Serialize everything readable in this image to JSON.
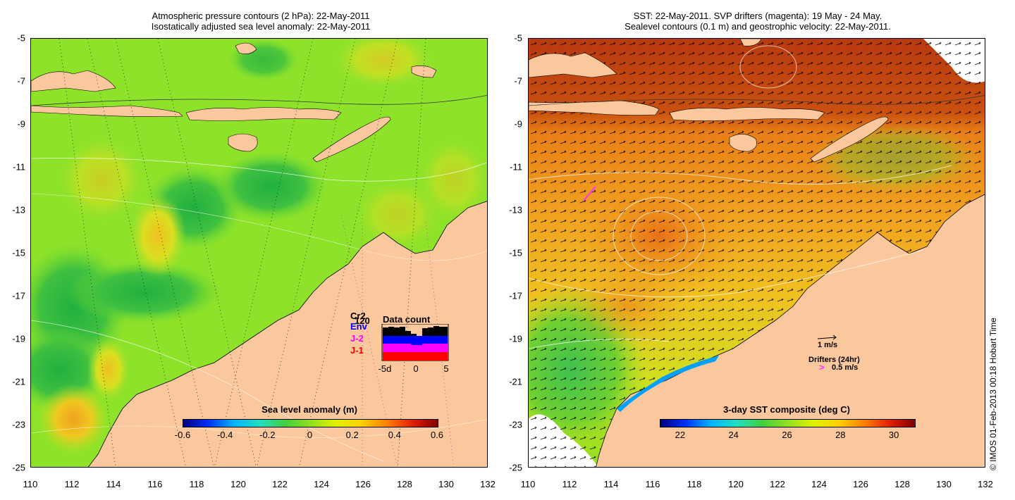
{
  "left_panel": {
    "title_line1": "Atmospheric pressure contours (2 hPa): 22-May-2011",
    "title_line2": "Isostatically adjusted sea level anomaly: 22-May-2011",
    "colorbar_label": "Sea level anomaly (m)",
    "colorbar_ticks": [
      "-0.6",
      "-0.4",
      "-0.2",
      "0",
      "0.2",
      "0.4",
      "0.6"
    ],
    "colorbar_colors": [
      "#00007f",
      "#0032ff",
      "#00b4ff",
      "#20e0c0",
      "#40d040",
      "#90e020",
      "#e0f000",
      "#ffd000",
      "#ff8000",
      "#e02000",
      "#800000"
    ],
    "inset": {
      "title": "Data count",
      "legend": [
        {
          "label": "Cr2",
          "color": "#000000"
        },
        {
          "label": "Env",
          "color": "#0000ff"
        },
        {
          "label": "J-2",
          "color": "#ff00ff"
        },
        {
          "label": "J-1",
          "color": "#ff0000"
        }
      ],
      "overlap_label": "120",
      "x_ticks": [
        "-5d",
        "0",
        "5"
      ]
    }
  },
  "right_panel": {
    "title_line1": "SST: 22-May-2011. SVP drifters (magenta): 19 May - 24 May.",
    "title_line2": "Sealevel contours (0.1 m) and geostrophic velocity: 22-May-2011.",
    "colorbar_label": "3-day SST composite (deg C)",
    "colorbar_ticks": [
      "22",
      "24",
      "26",
      "28",
      "30"
    ],
    "colorbar_colors": [
      "#00007f",
      "#0032ff",
      "#00b4ff",
      "#20e0c0",
      "#40d040",
      "#90e020",
      "#e0f000",
      "#ffd000",
      "#ff8000",
      "#e02000",
      "#800000"
    ],
    "vector_scale_label": "1 m/s",
    "drifters_label": "Drifters (24hr)",
    "drifter_speed_label": "0.5 m/s"
  },
  "axes": {
    "x_ticks": [
      "110",
      "112",
      "114",
      "116",
      "118",
      "120",
      "122",
      "124",
      "126",
      "128",
      "130",
      "132"
    ],
    "y_ticks": [
      "-5",
      "-7",
      "-9",
      "-11",
      "-13",
      "-15",
      "-17",
      "-19",
      "-21",
      "-23",
      "-25"
    ]
  },
  "colors": {
    "land": "#fbc79c",
    "ocean_left": "#8ee22a",
    "ocean_right": "#f0c020",
    "warm_right": "#b83a10"
  },
  "copyright": "© IMOS 01-Feb-2013 00:18 Hobart Time"
}
